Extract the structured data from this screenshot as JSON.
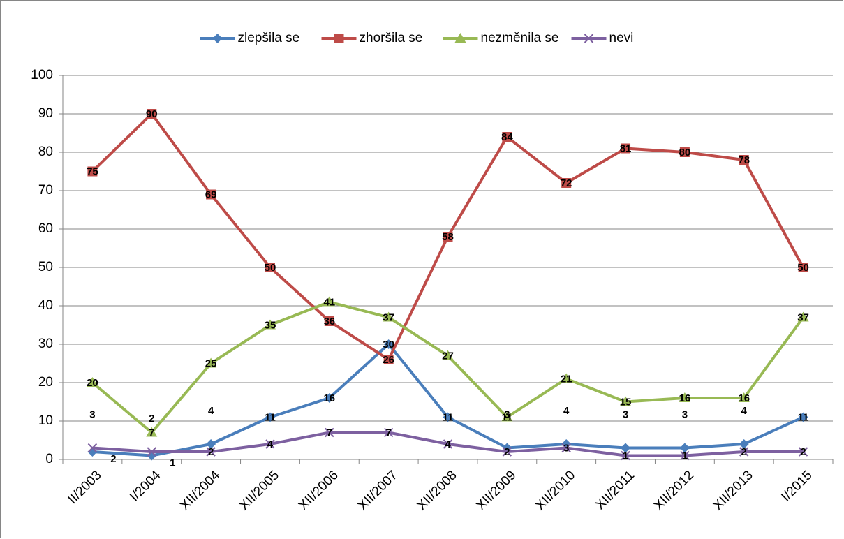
{
  "chart_data": {
    "type": "line",
    "categories": [
      "II/2003",
      "I/2004",
      "XII/2004",
      "XII/2005",
      "XII/2006",
      "XII/2007",
      "XII/2008",
      "XII/2009",
      "XII/2010",
      "XII/2011",
      "XII/2012",
      "XII/2013",
      "I/2015"
    ],
    "series": [
      {
        "name": "zlepšila se",
        "color": "#4a7ebb",
        "marker": "diamond",
        "values": [
          2,
          1,
          4,
          11,
          16,
          30,
          11,
          3,
          4,
          3,
          3,
          4,
          11
        ]
      },
      {
        "name": "zhoršila se",
        "color": "#be4b48",
        "marker": "square",
        "values": [
          75,
          90,
          69,
          50,
          36,
          26,
          58,
          84,
          72,
          81,
          80,
          78,
          50
        ]
      },
      {
        "name": "nezměnila se",
        "color": "#98b954",
        "marker": "triangle",
        "values": [
          20,
          7,
          25,
          35,
          41,
          37,
          27,
          11,
          21,
          15,
          16,
          16,
          37
        ]
      },
      {
        "name": "nevi",
        "color": "#7d60a0",
        "marker": "x",
        "values": [
          3,
          2,
          2,
          4,
          7,
          7,
          4,
          2,
          3,
          1,
          1,
          2,
          2
        ]
      }
    ],
    "ylim": [
      0,
      100
    ],
    "yticks": [
      0,
      10,
      20,
      30,
      40,
      50,
      60,
      70,
      80,
      90,
      100
    ],
    "grid": true,
    "legend": "top"
  }
}
